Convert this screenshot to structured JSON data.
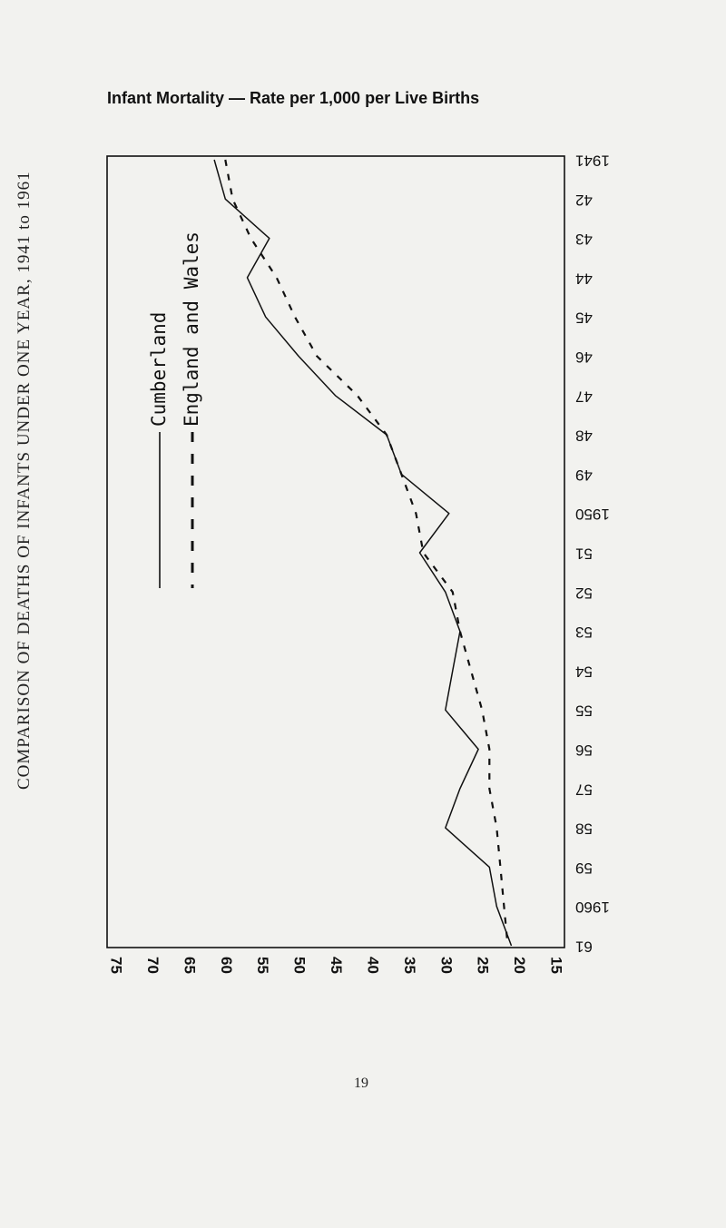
{
  "page": {
    "title": "Infant Mortality — Rate per 1,000 per Live Births",
    "side_title": "COMPARISON OF DEATHS OF INFANTS UNDER ONE YEAR, 1941 to 1961",
    "page_number": "19"
  },
  "colors": {
    "ink": "#111111",
    "paper": "#f2f2ef"
  },
  "chart_data": {
    "type": "line",
    "title": "Infant Mortality — Rate per 1,000 per Live Births",
    "orientation": "rotated: years run top-to-bottom on the right, rates run right-to-left along the bottom",
    "years": [
      "1941",
      "42",
      "43",
      "44",
      "45",
      "46",
      "47",
      "48",
      "49",
      "1950",
      "51",
      "52",
      "53",
      "54",
      "55",
      "56",
      "57",
      "58",
      "59",
      "1960",
      "61"
    ],
    "year_values": [
      1941,
      1942,
      1943,
      1944,
      1945,
      1946,
      1947,
      1948,
      1949,
      1950,
      1951,
      1952,
      1953,
      1954,
      1955,
      1956,
      1957,
      1958,
      1959,
      1960,
      1961
    ],
    "rate_ticks": [
      "75",
      "70",
      "65",
      "60",
      "55",
      "50",
      "45",
      "40",
      "35",
      "30",
      "25",
      "20",
      "15"
    ],
    "rate_tick_values": [
      75,
      70,
      65,
      60,
      55,
      50,
      45,
      40,
      35,
      30,
      25,
      20,
      15
    ],
    "rate_range": [
      15,
      76
    ],
    "legend": [
      {
        "name": "Cumberland",
        "style": "solid"
      },
      {
        "name": "England and Wales",
        "style": "dashed"
      }
    ],
    "series": [
      {
        "name": "Cumberland",
        "style": "solid",
        "values": [
          61.5,
          60,
          54,
          57,
          54.5,
          50,
          45,
          38,
          36,
          29.5,
          33.5,
          30,
          28,
          29,
          30,
          25.5,
          28,
          30,
          24,
          23,
          21
        ]
      },
      {
        "name": "England and Wales",
        "style": "dashed",
        "values": [
          60,
          59,
          56.5,
          53,
          50.5,
          47.5,
          42,
          38,
          36,
          34,
          33,
          29,
          28,
          26.5,
          25,
          24,
          24,
          23,
          22.5,
          22,
          21.5
        ]
      }
    ]
  }
}
